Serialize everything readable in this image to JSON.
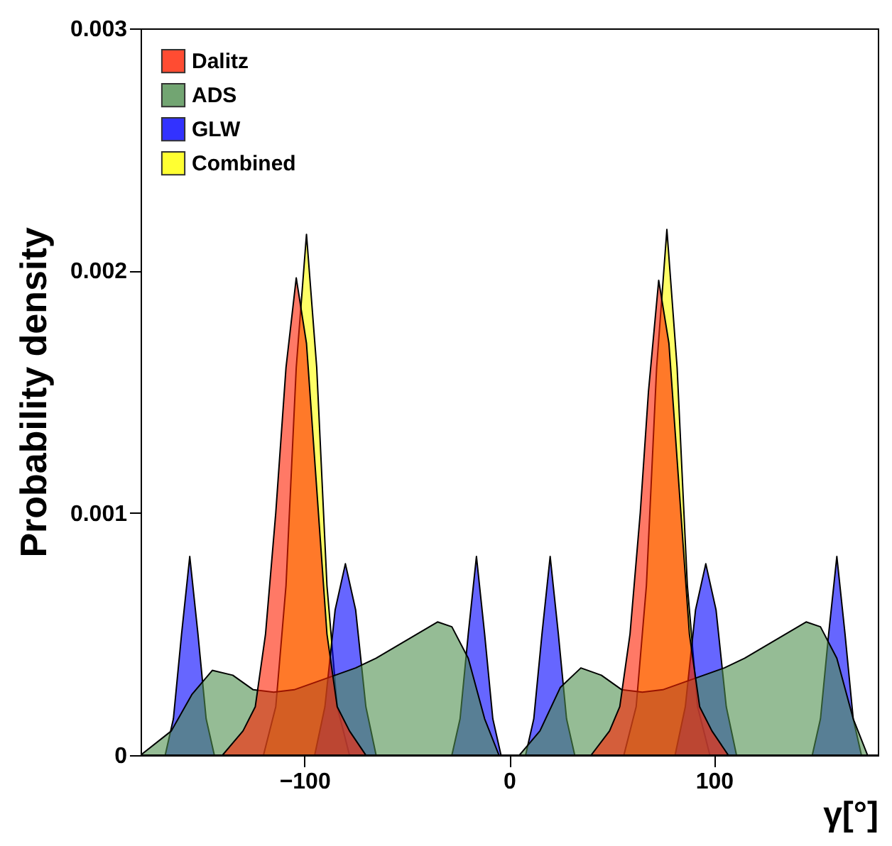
{
  "chart_data": {
    "type": "area",
    "xlabel": "γ[°]",
    "ylabel": "Probability density",
    "xlim": [
      -180,
      180
    ],
    "xticks": [
      -100,
      0,
      100
    ],
    "ylim": [
      0,
      0.003
    ],
    "yticks": [
      {
        "value": 0,
        "label": "0"
      },
      {
        "value": 0.001,
        "label": "0.001"
      },
      {
        "value": 0.002,
        "label": "0.002"
      },
      {
        "value": 0.003,
        "label": "0.003"
      }
    ],
    "legend": "top left",
    "grid": false,
    "series": [
      {
        "name": "Dalitz",
        "color": "#ff2000",
        "x": [
          -180,
          -140,
          -130,
          -124,
          -119,
          -114,
          -109,
          -104,
          -99,
          -94,
          -89,
          -84,
          -78,
          -70,
          40,
          49,
          54,
          59,
          64,
          68,
          73,
          78,
          83,
          88,
          93,
          99,
          107,
          180
        ],
        "values": [
          0,
          0,
          0.0001,
          0.0002,
          0.0005,
          0.001,
          0.0016,
          0.00197,
          0.0017,
          0.0011,
          0.0005,
          0.0002,
          0.0001,
          0,
          0,
          0.0001,
          0.0002,
          0.0005,
          0.001,
          0.0015,
          0.00196,
          0.0017,
          0.0011,
          0.0005,
          0.0002,
          0.0001,
          0,
          0
        ]
      },
      {
        "name": "ADS",
        "color": "#4f8f4f",
        "x": [
          -180,
          -165,
          -155,
          -145,
          -135,
          -125,
          -115,
          -105,
          -95,
          -85,
          -75,
          -65,
          -55,
          -45,
          -35,
          -28,
          -20,
          -12,
          -5,
          0,
          5,
          15,
          25,
          35,
          45,
          55,
          65,
          75,
          85,
          95,
          105,
          115,
          125,
          135,
          145,
          152,
          160,
          168,
          175,
          180
        ],
        "values": [
          0,
          0.0001,
          0.00025,
          0.00035,
          0.00033,
          0.00027,
          0.00026,
          0.00027,
          0.0003,
          0.00033,
          0.00036,
          0.0004,
          0.00045,
          0.0005,
          0.00055,
          0.00053,
          0.0004,
          0.00015,
          0,
          0,
          0,
          0.0001,
          0.00028,
          0.00036,
          0.00033,
          0.00027,
          0.00026,
          0.00027,
          0.0003,
          0.00033,
          0.00036,
          0.0004,
          0.00045,
          0.0005,
          0.00055,
          0.00053,
          0.0004,
          0.00015,
          0,
          0
        ]
      },
      {
        "name": "GLW",
        "color": "#0000ff",
        "x": [
          -180,
          -168,
          -164,
          -160,
          -156,
          -152,
          -148,
          -144,
          -95,
          -90,
          -85,
          -80,
          -75,
          -70,
          -65,
          -28,
          -24,
          -20,
          -16,
          -12,
          -8,
          -4,
          8,
          12,
          16,
          20,
          24,
          28,
          32,
          81,
          86,
          91,
          96,
          101,
          106,
          111,
          148,
          152,
          156,
          160,
          164,
          168,
          172,
          180
        ],
        "values": [
          0,
          0,
          0.00015,
          0.0005,
          0.00082,
          0.0005,
          0.00015,
          0,
          0,
          0.0002,
          0.0006,
          0.00079,
          0.0006,
          0.0002,
          0,
          0,
          0.00015,
          0.0005,
          0.00082,
          0.0005,
          0.00015,
          0,
          0,
          0.00015,
          0.0005,
          0.00082,
          0.0005,
          0.00015,
          0,
          0,
          0.0002,
          0.0006,
          0.00079,
          0.0006,
          0.0002,
          0,
          0,
          0.00015,
          0.0005,
          0.00082,
          0.0005,
          0.00015,
          0,
          0
        ]
      },
      {
        "name": "Combined",
        "color": "#ffff00",
        "x": [
          -180,
          -120,
          -114,
          -109,
          -104,
          -99,
          -94,
          -89,
          -84,
          -78,
          56,
          62,
          67,
          72,
          77,
          82,
          87,
          92,
          98,
          180
        ],
        "values": [
          0,
          0,
          0.0002,
          0.0007,
          0.0016,
          0.00215,
          0.0016,
          0.0007,
          0.0002,
          0,
          0,
          0.0002,
          0.0007,
          0.0016,
          0.00217,
          0.0016,
          0.0007,
          0.0002,
          0,
          0
        ]
      }
    ]
  }
}
